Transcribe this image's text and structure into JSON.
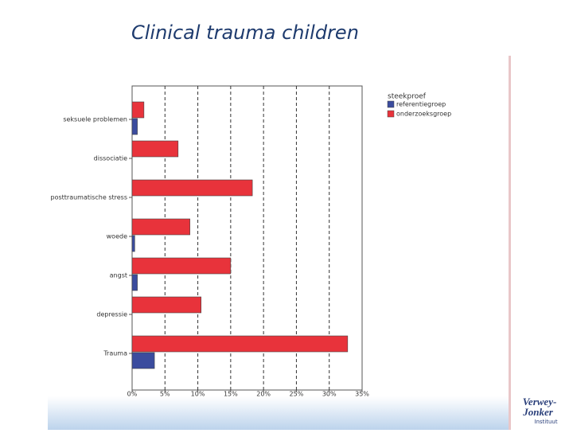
{
  "chart_data": {
    "type": "barh",
    "title": "Clinical trauma children",
    "categories": [
      "seksuele problemen",
      "dissociatie",
      "posttraumatische stress",
      "woede",
      "angst",
      "depressie",
      "Trauma"
    ],
    "series": [
      {
        "name": "onderzoeksgroep",
        "color": "#e8333b",
        "values": [
          1.8,
          7.0,
          18.3,
          8.8,
          15.0,
          10.5,
          32.8
        ]
      },
      {
        "name": "referentiegroep",
        "color": "#3b4c9e",
        "values": [
          0.8,
          0,
          0,
          0.4,
          0.8,
          0,
          3.4
        ]
      }
    ],
    "legend_title": "steekproef",
    "xlim": [
      0,
      35
    ],
    "xticks": [
      {
        "value": 0,
        "label": "0%"
      },
      {
        "value": 5,
        "label": "5%"
      },
      {
        "value": 10,
        "label": "10%"
      },
      {
        "value": 15,
        "label": "15%"
      },
      {
        "value": 20,
        "label": "20%"
      },
      {
        "value": 25,
        "label": "25%"
      },
      {
        "value": 30,
        "label": "30%"
      },
      {
        "value": 35,
        "label": "35%"
      }
    ],
    "grid": true
  },
  "logo": {
    "line1": "Verwey-",
    "line2": "Jonker",
    "line3": "Instituut"
  }
}
